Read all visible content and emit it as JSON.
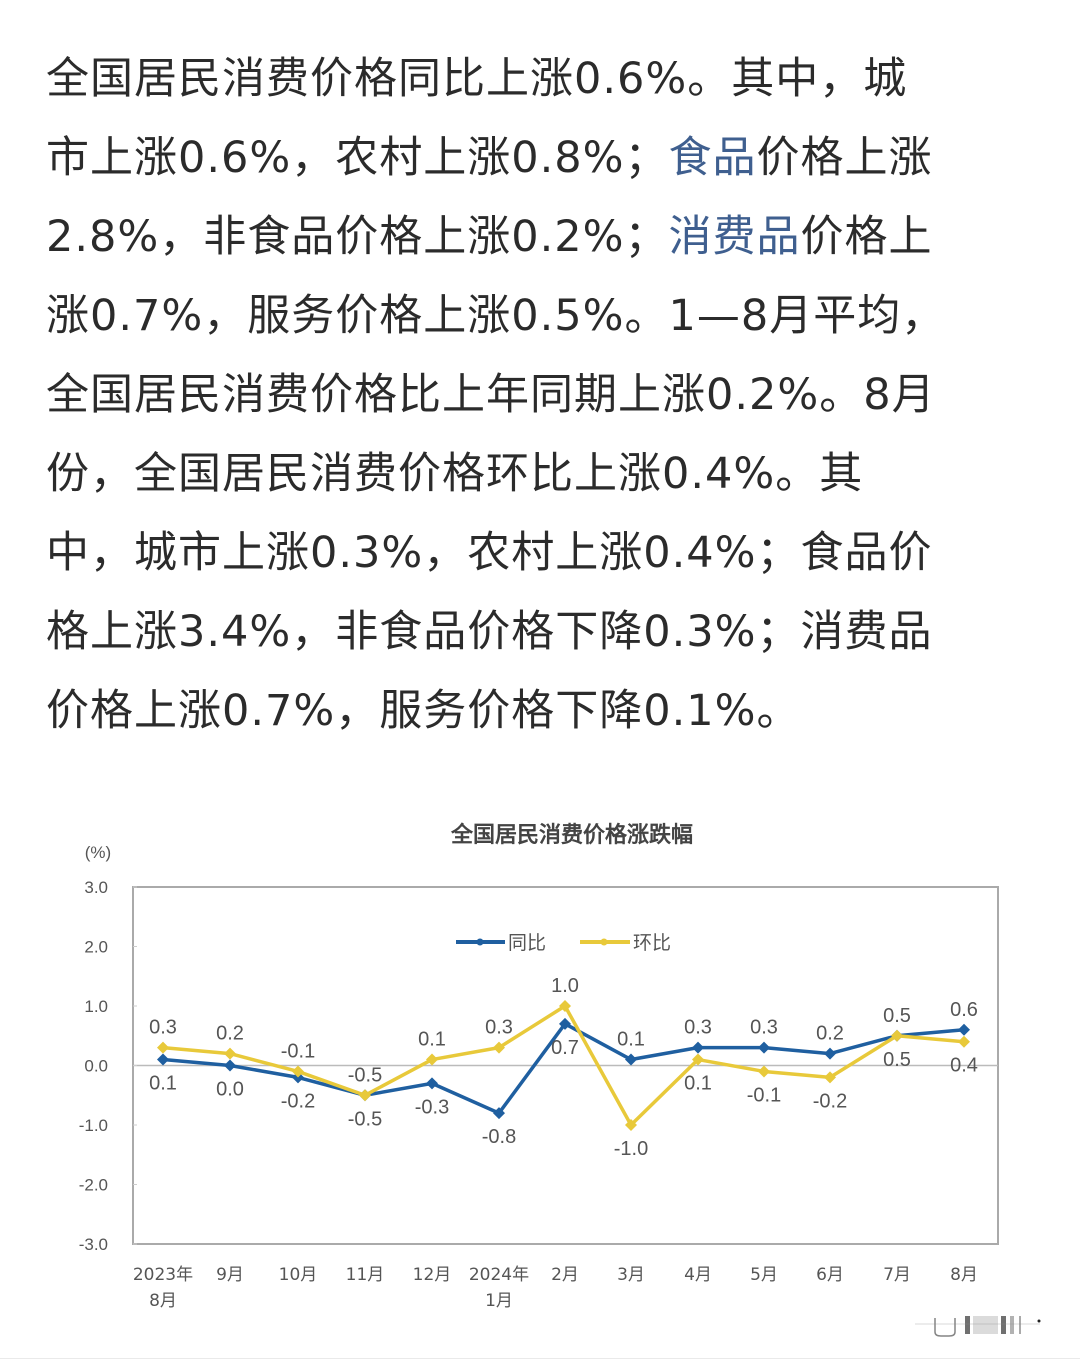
{
  "article": {
    "lines": [
      [
        {
          "t": "全国居民消费价格同比上涨0.6%。其中，城"
        }
      ],
      [
        {
          "t": "市上涨0.6%，农村上涨0.8%；"
        },
        {
          "t": "食品",
          "link": true
        },
        {
          "t": "价格上涨"
        }
      ],
      [
        {
          "t": "2.8%，非食品价格上涨0.2%；"
        },
        {
          "t": "消费品",
          "link": true
        },
        {
          "t": "价格上"
        }
      ],
      [
        {
          "t": "涨0.7%，服务价格上涨0.5%。1—8月平均，"
        }
      ],
      [
        {
          "t": "全国居民消费价格比上年同期上涨0.2%。8月"
        }
      ],
      [
        {
          "t": "份，全国居民消费价格环比上涨0.4%。其"
        }
      ],
      [
        {
          "t": "中，城市上涨0.3%，农村上涨0.4%；食品价"
        }
      ],
      [
        {
          "t": "格上涨3.4%，非食品价格下降0.3%；消费品"
        }
      ],
      [
        {
          "t": "价格上涨0.7%，服务价格下降0.1%。"
        }
      ]
    ],
    "link_color": "#3f5f8f",
    "text_color": "#2b2b2b"
  },
  "chart_data": {
    "type": "line",
    "title": "全国居民消费价格涨跌幅",
    "ylabel": "(%)",
    "xlabel": "",
    "ylim": [
      -3.0,
      3.0
    ],
    "yticks": [
      "3.0",
      "2.0",
      "1.0",
      "0.0",
      "-1.0",
      "-2.0",
      "-3.0"
    ],
    "categories": [
      "2023年8月",
      "9月",
      "10月",
      "11月",
      "12月",
      "2024年1月",
      "2月",
      "3月",
      "4月",
      "5月",
      "6月",
      "7月",
      "8月"
    ],
    "category_lines": [
      [
        "2023年",
        "8月"
      ],
      [
        "9月"
      ],
      [
        "10月"
      ],
      [
        "11月"
      ],
      [
        "12月"
      ],
      [
        "2024年",
        "1月"
      ],
      [
        "2月"
      ],
      [
        "3月"
      ],
      [
        "4月"
      ],
      [
        "5月"
      ],
      [
        "6月"
      ],
      [
        "7月"
      ],
      [
        "8月"
      ]
    ],
    "legend_position": "top-center",
    "grid": false,
    "series": [
      {
        "name": "同比",
        "color": "#1f5fa0",
        "values": [
          0.1,
          0.0,
          -0.2,
          -0.5,
          -0.3,
          -0.8,
          0.7,
          0.1,
          0.3,
          0.3,
          0.2,
          0.5,
          0.6
        ],
        "label_pos": [
          "below",
          "below",
          "below",
          "below",
          "below",
          "below",
          "below",
          "above",
          "above",
          "above",
          "above",
          "above",
          "above"
        ]
      },
      {
        "name": "环比",
        "color": "#e8c93a",
        "values": [
          0.3,
          0.2,
          -0.1,
          -0.5,
          0.1,
          0.3,
          1.0,
          -1.0,
          0.1,
          -0.1,
          -0.2,
          0.5,
          0.4
        ],
        "label_pos": [
          "above",
          "above",
          "above",
          "above",
          "above",
          "above",
          "above",
          "below",
          "below",
          "below",
          "below",
          "below",
          "below"
        ]
      }
    ]
  }
}
